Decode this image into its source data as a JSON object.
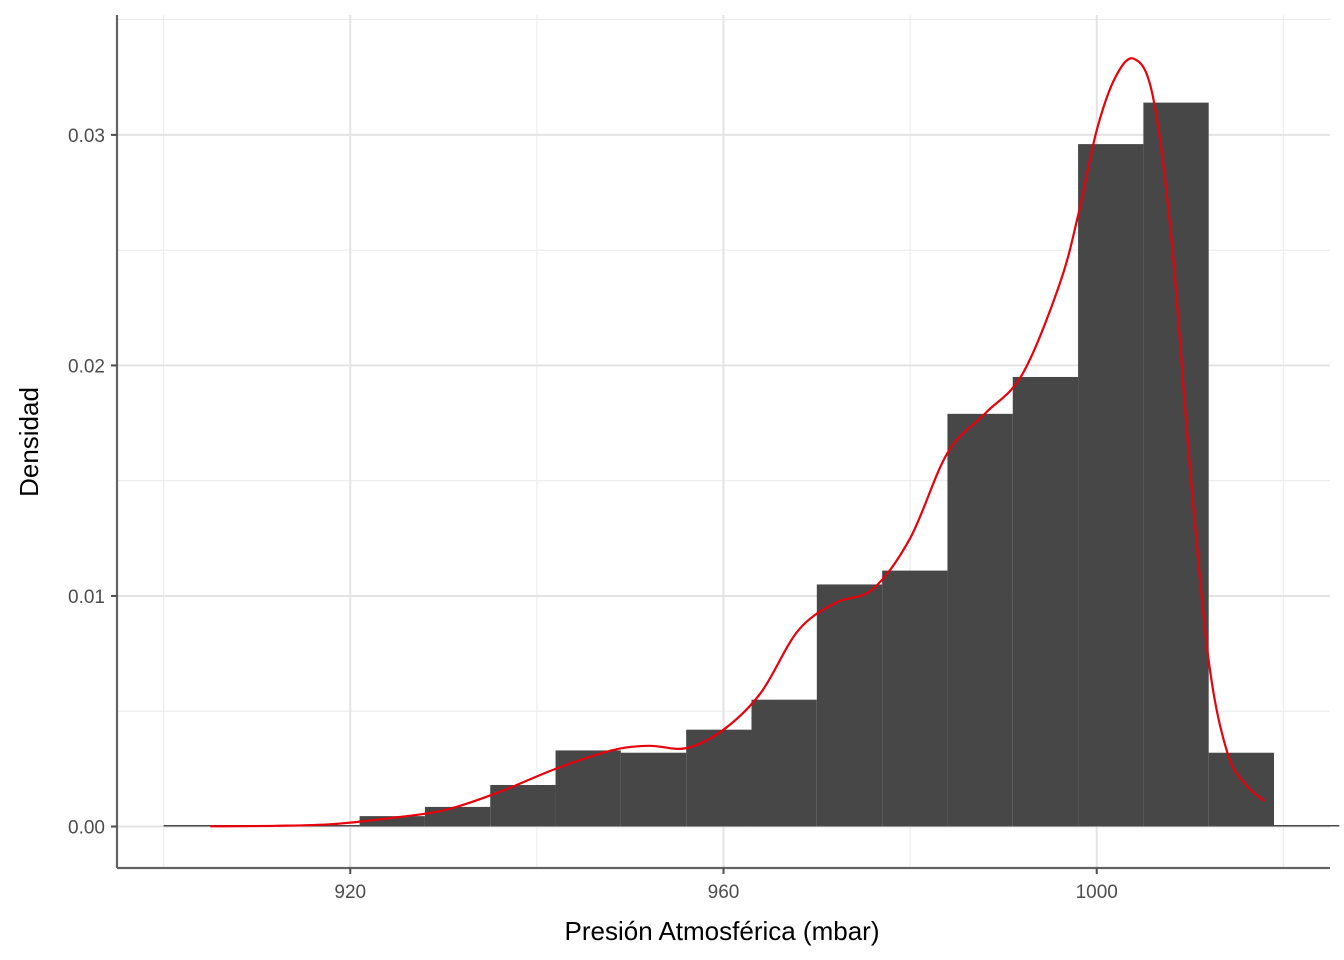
{
  "chart_data": {
    "type": "bar",
    "subtype": "histogram-with-density",
    "xlabel": "Presión Atmosférica (mbar)",
    "ylabel": "Densidad",
    "xlim": [
      895,
      1025
    ],
    "ylim": [
      -0.0018,
      0.0352
    ],
    "x_ticks": [
      920,
      960,
      1000
    ],
    "x_tick_labels": [
      "920",
      "960",
      "1000"
    ],
    "y_ticks": [
      0,
      0.01,
      0.02,
      0.03
    ],
    "y_tick_labels": [
      "0.00",
      "0.01",
      "0.02",
      "0.03"
    ],
    "grid": true,
    "bar_color": "#474747",
    "density_color": "#e8000b",
    "bins": [
      {
        "x0": 900,
        "x1": 907,
        "value": 2e-05
      },
      {
        "x0": 907,
        "x1": 914,
        "value": 2e-05
      },
      {
        "x0": 914,
        "x1": 921,
        "value": 5e-05
      },
      {
        "x0": 921,
        "x1": 928,
        "value": 0.00045
      },
      {
        "x0": 928,
        "x1": 935,
        "value": 0.00085
      },
      {
        "x0": 935,
        "x1": 942,
        "value": 0.0018
      },
      {
        "x0": 942,
        "x1": 949,
        "value": 0.0033
      },
      {
        "x0": 949,
        "x1": 956,
        "value": 0.0032
      },
      {
        "x0": 956,
        "x1": 963,
        "value": 0.0042
      },
      {
        "x0": 963,
        "x1": 970,
        "value": 0.0055
      },
      {
        "x0": 970,
        "x1": 977,
        "value": 0.0105
      },
      {
        "x0": 977,
        "x1": 984,
        "value": 0.0111
      },
      {
        "x0": 984,
        "x1": 991,
        "value": 0.0179
      },
      {
        "x0": 991,
        "x1": 998,
        "value": 0.0195
      },
      {
        "x0": 998,
        "x1": 1005,
        "value": 0.0296
      },
      {
        "x0": 1005,
        "x1": 1012,
        "value": 0.0314
      },
      {
        "x0": 1012,
        "x1": 1019,
        "value": 0.0032
      },
      {
        "x0": 1019,
        "x1": 1026,
        "value": 5e-05
      }
    ],
    "density": {
      "x": [
        905,
        912,
        918,
        924,
        930,
        936,
        942,
        948,
        952,
        956,
        960,
        964,
        968,
        972,
        976,
        980,
        984,
        988,
        992,
        996,
        998,
        1000,
        1002,
        1004,
        1006,
        1008,
        1010,
        1012,
        1014,
        1016,
        1018
      ],
      "y": [
        1e-05,
        3e-05,
        0.0001,
        0.00035,
        0.0007,
        0.0015,
        0.0025,
        0.0033,
        0.0035,
        0.0034,
        0.0042,
        0.0058,
        0.0085,
        0.0097,
        0.0103,
        0.0125,
        0.0162,
        0.0179,
        0.0196,
        0.0235,
        0.0265,
        0.0302,
        0.0325,
        0.0333,
        0.0317,
        0.0255,
        0.0155,
        0.0072,
        0.0032,
        0.0018,
        0.0011
      ]
    }
  }
}
